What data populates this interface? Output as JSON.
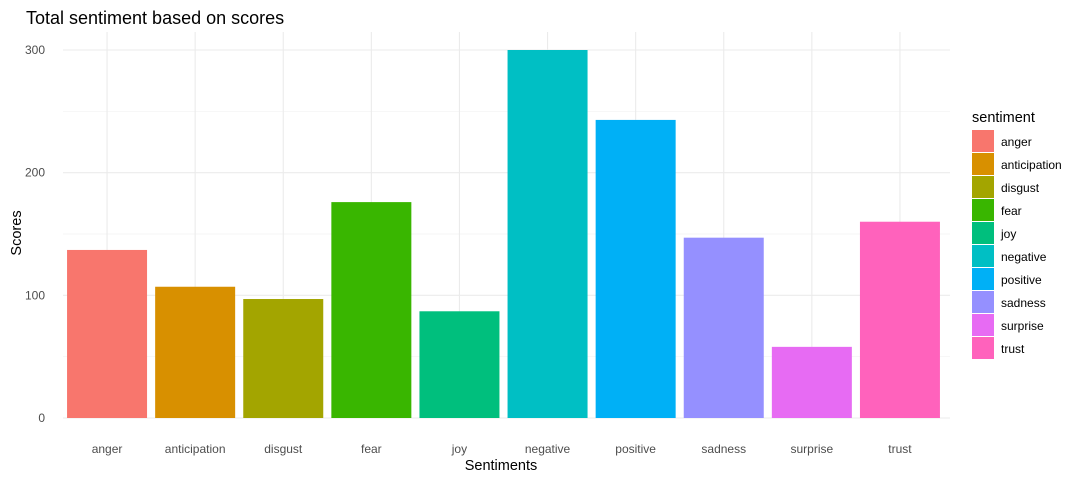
{
  "chart_data": {
    "type": "bar",
    "title": "Total sentiment based on scores",
    "xlabel": "Sentiments",
    "ylabel": "Scores",
    "categories": [
      "anger",
      "anticipation",
      "disgust",
      "fear",
      "joy",
      "negative",
      "positive",
      "sadness",
      "surprise",
      "trust"
    ],
    "values": [
      137,
      107,
      97,
      176,
      87,
      300,
      243,
      147,
      58,
      160
    ],
    "colors": [
      "#F8766D",
      "#D89000",
      "#A3A500",
      "#39B600",
      "#00BF7D",
      "#00BFC4",
      "#00B0F6",
      "#9590FF",
      "#E76BF3",
      "#FF62BC"
    ],
    "ylim": [
      0,
      300
    ],
    "yticks": [
      "0",
      "100",
      "200",
      "300"
    ],
    "grid": true,
    "legend": {
      "title": "sentiment",
      "position": "right",
      "entries": [
        "anger",
        "anticipation",
        "disgust",
        "fear",
        "joy",
        "negative",
        "positive",
        "sadness",
        "surprise",
        "trust"
      ]
    }
  }
}
